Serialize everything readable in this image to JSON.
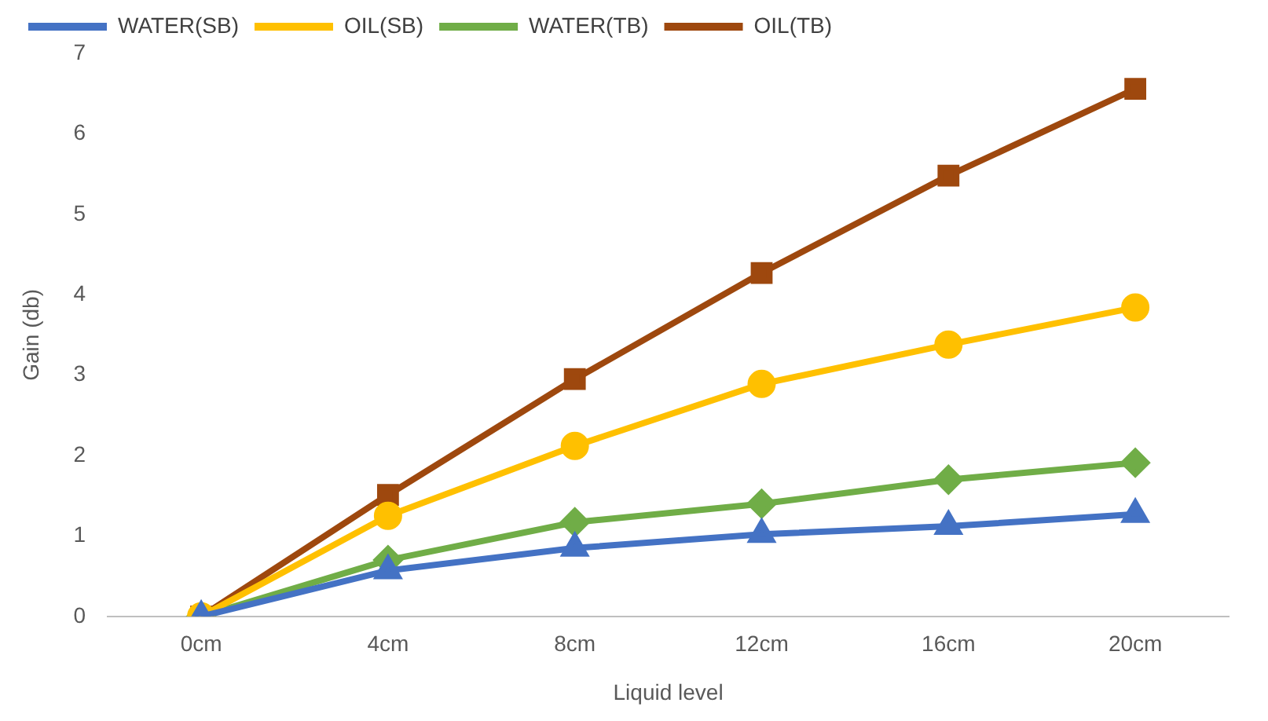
{
  "chart_data": {
    "type": "line",
    "xlabel": "Liquid level",
    "ylabel": "Gain (db)",
    "categories": [
      "0cm",
      "4cm",
      "8cm",
      "12cm",
      "16cm",
      "20cm"
    ],
    "series": [
      {
        "name": "WATER(SB)",
        "color": "#4472c4",
        "marker": "triangle",
        "values": [
          0,
          0.57,
          0.85,
          1.02,
          1.12,
          1.27
        ]
      },
      {
        "name": "OIL(SB)",
        "color": "#ffc000",
        "marker": "circle",
        "values": [
          0,
          1.25,
          2.12,
          2.89,
          3.38,
          3.84
        ]
      },
      {
        "name": "WATER(TB)",
        "color": "#70ad47",
        "marker": "diamond",
        "values": [
          0,
          0.7,
          1.17,
          1.4,
          1.7,
          1.91
        ]
      },
      {
        "name": "OIL(TB)",
        "color": "#9e480e",
        "marker": "square",
        "values": [
          0,
          1.51,
          2.95,
          4.27,
          5.48,
          6.56
        ]
      }
    ],
    "ylim": [
      0,
      7
    ],
    "yticks": [
      0,
      1,
      2,
      3,
      4,
      5,
      6,
      7
    ],
    "grid": false,
    "legend": "top",
    "line_style": "solid"
  }
}
